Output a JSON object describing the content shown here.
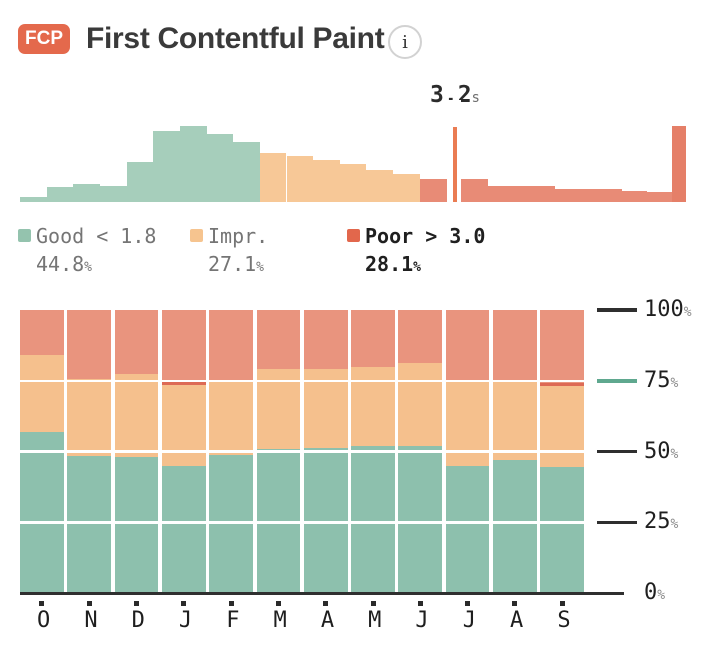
{
  "header": {
    "badge": "FCP",
    "title": "First Contentful Paint",
    "info_glyph": "i"
  },
  "colors": {
    "badge_bg": "#e4694c",
    "good_hist": "#a6cebb",
    "impr_hist": "#f7c897",
    "poor_hist": "#e88b76",
    "poor_deep": "#e57f68",
    "marker": "#ea7c53",
    "good_bar": "#8dc0ad",
    "impr_bar": "#f5c08d",
    "poor_bar": "#e9947e",
    "poor_edge": "#dd6a55",
    "good_legend": "#94c3ae",
    "impr_legend": "#f6c48f",
    "poor_legend": "#e2674c",
    "axis_dark": "#2f2f2f",
    "tick_teal": "#5fa88f"
  },
  "legend": {
    "items": [
      {
        "label": "Good < 1.8",
        "value": "44.8",
        "unit": "%",
        "color_key": "good_legend",
        "emphasis": false
      },
      {
        "label": "Impr.",
        "value": "27.1",
        "unit": "%",
        "color_key": "impr_legend",
        "emphasis": false
      },
      {
        "label": "Poor > 3.0",
        "value": "28.1",
        "unit": "%",
        "color_key": "poor_legend",
        "emphasis": true
      }
    ]
  },
  "chart_data": [
    {
      "type": "histogram",
      "description": "FCP load-time distribution, good/improvement/poor bins left to right",
      "marker": {
        "value": "3.2",
        "unit": "s",
        "x": 433
      },
      "notch": {
        "x": 426.5,
        "w": 14
      },
      "bins": [
        {
          "w": 26.65,
          "h": 5,
          "c": "good_hist"
        },
        {
          "w": 26.65,
          "h": 15,
          "c": "good_hist"
        },
        {
          "w": 26.65,
          "h": 18,
          "c": "good_hist"
        },
        {
          "w": 26.65,
          "h": 16,
          "c": "good_hist"
        },
        {
          "w": 26.65,
          "h": 40,
          "c": "good_hist"
        },
        {
          "w": 26.65,
          "h": 71,
          "c": "good_hist"
        },
        {
          "w": 26.65,
          "h": 76,
          "c": "good_hist"
        },
        {
          "w": 26.65,
          "h": 68,
          "c": "good_hist"
        },
        {
          "w": 26.65,
          "h": 60,
          "c": "good_hist"
        },
        {
          "w": 26.65,
          "h": 49,
          "c": "impr_hist"
        },
        {
          "w": 26.65,
          "h": 46,
          "c": "impr_hist"
        },
        {
          "w": 26.65,
          "h": 42,
          "c": "impr_hist"
        },
        {
          "w": 26.65,
          "h": 38,
          "c": "impr_hist"
        },
        {
          "w": 26.65,
          "h": 32,
          "c": "impr_hist"
        },
        {
          "w": 26.65,
          "h": 28,
          "c": "impr_hist"
        },
        {
          "w": 26.6,
          "h": 23,
          "c": "poor_hist"
        },
        {
          "w": 41.6,
          "h": 23,
          "c": "poor_hist"
        },
        {
          "w": 27,
          "h": 16,
          "c": "poor_hist"
        },
        {
          "w": 27,
          "h": 16,
          "c": "poor_hist"
        },
        {
          "w": 13,
          "h": 16,
          "c": "poor_hist"
        },
        {
          "w": 27,
          "h": 13,
          "c": "poor_hist"
        },
        {
          "w": 27,
          "h": 13,
          "c": "poor_hist"
        },
        {
          "w": 13,
          "h": 13,
          "c": "poor_hist"
        },
        {
          "w": 25,
          "h": 11,
          "c": "poor_hist"
        },
        {
          "w": 25,
          "h": 10,
          "c": "poor_hist"
        },
        {
          "w": 14,
          "h": 76,
          "c": "poor_deep"
        }
      ]
    },
    {
      "type": "bar",
      "stacked": true,
      "categories": [
        "O",
        "N",
        "D",
        "J",
        "F",
        "M",
        "A",
        "M",
        "J",
        "J",
        "A",
        "S"
      ],
      "series": [
        {
          "name": "Good",
          "color_key": "good_bar",
          "values": [
            57,
            48.5,
            48,
            44.8,
            48.8,
            50.9,
            51.2,
            51.8,
            51.9,
            44.8,
            47,
            44.7
          ]
        },
        {
          "name": "Improvement",
          "color_key": "impr_bar",
          "values": [
            27,
            27,
            29.5,
            28.8,
            25.7,
            28.2,
            28.1,
            28.1,
            29.5,
            30.1,
            28.4,
            28.3
          ]
        },
        {
          "name": "Poor",
          "color_key": "poor_bar",
          "values": [
            16,
            24.5,
            22.5,
            26.4,
            25.5,
            20.9,
            20.7,
            20.1,
            18.6,
            25.1,
            24.6,
            27
          ]
        }
      ],
      "edge_markers": [
        3,
        11
      ],
      "gridlines": [
        25,
        50,
        75
      ],
      "yticks": [
        {
          "label": "100",
          "v": 100,
          "teal": false
        },
        {
          "label": "75",
          "v": 75,
          "teal": true
        },
        {
          "label": "50",
          "v": 50,
          "teal": false
        },
        {
          "label": "25",
          "v": 25,
          "teal": false
        },
        {
          "label": "0",
          "v": 0,
          "teal": false
        }
      ],
      "y_unit": "%",
      "ylim": [
        0,
        100
      ]
    }
  ]
}
